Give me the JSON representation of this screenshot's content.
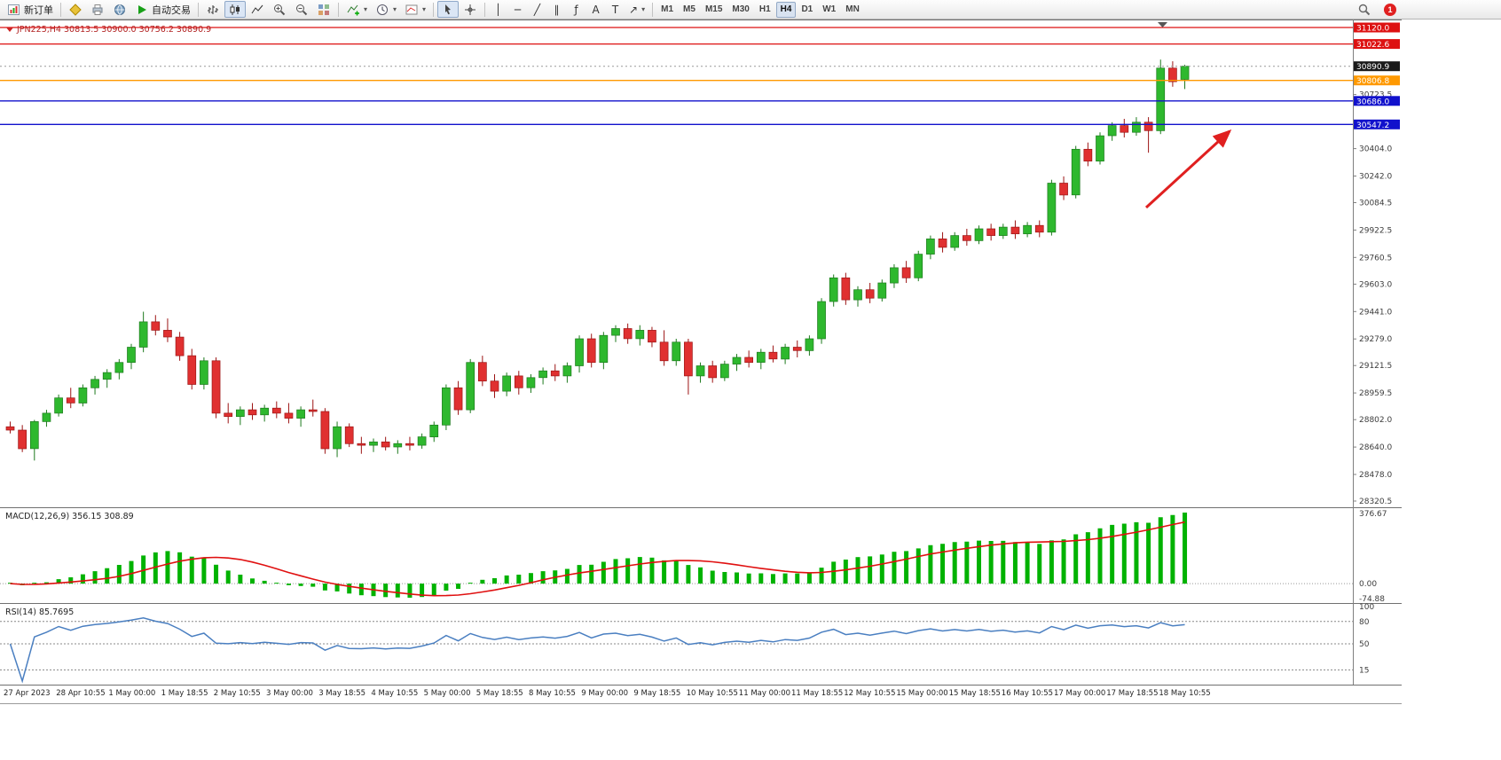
{
  "toolbar": {
    "new_order": "新订单",
    "auto_trading": "自动交易",
    "timeframes": [
      "M1",
      "M5",
      "M15",
      "M30",
      "H1",
      "H4",
      "D1",
      "W1",
      "MN"
    ],
    "active_timeframe": "H4",
    "notification_count": "1",
    "tool_glyphs": {
      "vline": "│",
      "hline": "─",
      "trendline": "╱",
      "channel": "∥",
      "fibonacci": "ƒ",
      "text": "A",
      "label": "T",
      "arrows": "↗",
      "dropdown": "▾"
    }
  },
  "chart": {
    "symbol_header": "JPN225,H4 30813.5 30900.0 30756.2 30890.9",
    "bid": {
      "price": 30890.9,
      "label": "30890.9",
      "badge_color": "#1a1a1a"
    },
    "price_lines": [
      {
        "price": 31120.0,
        "label": "31120.0",
        "color": "#dd1111"
      },
      {
        "price": 31022.6,
        "label": "31022.6",
        "color": "#dd1111"
      },
      {
        "price": 30806.8,
        "label": "30806.8",
        "color": "#ff9900"
      },
      {
        "price": 30686.0,
        "label": "30686.0",
        "color": "#1111cc"
      },
      {
        "price": 30547.2,
        "label": "30547.2",
        "color": "#1111cc"
      }
    ],
    "axis_ticks": [
      "30723.5",
      "30404.0",
      "30242.0",
      "30084.5",
      "29922.5",
      "29760.5",
      "29603.0",
      "29441.0",
      "29279.0",
      "29121.5",
      "28959.5",
      "28802.0",
      "28640.0",
      "28478.0",
      "28320.5"
    ],
    "colors": {
      "up": "#2eb82e",
      "down": "#e03030",
      "up_wick": "#1d7a1d",
      "down_wick": "#9c1414",
      "macd_hist": "#00b200",
      "macd_signal": "#e01010",
      "rsi_line": "#4a7fc1",
      "arrow": "#e02020"
    }
  },
  "indicators": {
    "macd": {
      "name": "MACD(12,26,9)",
      "value_main": "356.15",
      "value_signal": "308.89",
      "scale_top": "376.67",
      "scale_zero": "0.00",
      "scale_bottom": "-74.88",
      "params": {
        "fast": 12,
        "slow": 26,
        "signal": 9
      },
      "range": {
        "max": 376.67,
        "min": -74.88
      }
    },
    "rsi": {
      "name": "RSI(14)",
      "value": "85.7695",
      "period": 14,
      "scale_labels": [
        "100",
        "80",
        "50",
        "15"
      ],
      "levels": [
        80,
        50,
        15
      ]
    }
  },
  "chart_data": {
    "type": "candlestick",
    "symbol": "JPN225",
    "timeframe": "H4",
    "visible_range": {
      "price_min": 28320.5,
      "price_max": 31120.0
    },
    "last_ohlc": {
      "open": 30813.5,
      "high": 30900.0,
      "low": 30756.2,
      "close": 30890.9
    },
    "ohlc": [
      [
        28760,
        28790,
        28720,
        28740
      ],
      [
        28740,
        28770,
        28610,
        28630
      ],
      [
        28630,
        28800,
        28560,
        28790
      ],
      [
        28790,
        28860,
        28760,
        28840
      ],
      [
        28840,
        28950,
        28820,
        28930
      ],
      [
        28930,
        28990,
        28870,
        28900
      ],
      [
        28900,
        29010,
        28880,
        28990
      ],
      [
        28990,
        29060,
        28950,
        29040
      ],
      [
        29040,
        29100,
        28990,
        29080
      ],
      [
        29080,
        29160,
        29040,
        29140
      ],
      [
        29140,
        29250,
        29100,
        29230
      ],
      [
        29230,
        29440,
        29200,
        29380
      ],
      [
        29380,
        29420,
        29300,
        29330
      ],
      [
        29330,
        29400,
        29260,
        29290
      ],
      [
        29290,
        29320,
        29150,
        29180
      ],
      [
        29180,
        29220,
        28980,
        29010
      ],
      [
        29010,
        29170,
        28980,
        29150
      ],
      [
        29150,
        29170,
        28810,
        28840
      ],
      [
        28840,
        28900,
        28780,
        28820
      ],
      [
        28820,
        28880,
        28770,
        28860
      ],
      [
        28860,
        28900,
        28800,
        28830
      ],
      [
        28830,
        28890,
        28790,
        28870
      ],
      [
        28870,
        28910,
        28810,
        28840
      ],
      [
        28840,
        28900,
        28780,
        28810
      ],
      [
        28810,
        28880,
        28760,
        28860
      ],
      [
        28860,
        28920,
        28820,
        28850
      ],
      [
        28850,
        28870,
        28600,
        28630
      ],
      [
        28630,
        28790,
        28580,
        28760
      ],
      [
        28760,
        28780,
        28640,
        28660
      ],
      [
        28660,
        28700,
        28600,
        28650
      ],
      [
        28650,
        28690,
        28610,
        28670
      ],
      [
        28670,
        28700,
        28620,
        28640
      ],
      [
        28640,
        28680,
        28600,
        28660
      ],
      [
        28660,
        28700,
        28620,
        28650
      ],
      [
        28650,
        28720,
        28630,
        28700
      ],
      [
        28700,
        28790,
        28670,
        28770
      ],
      [
        28770,
        29010,
        28740,
        28990
      ],
      [
        28990,
        29030,
        28830,
        28860
      ],
      [
        28860,
        29160,
        28840,
        29140
      ],
      [
        29140,
        29180,
        29000,
        29030
      ],
      [
        29030,
        29070,
        28930,
        28970
      ],
      [
        28970,
        29080,
        28940,
        29060
      ],
      [
        29060,
        29090,
        28950,
        28990
      ],
      [
        28990,
        29070,
        28960,
        29050
      ],
      [
        29050,
        29110,
        29010,
        29090
      ],
      [
        29090,
        29130,
        29030,
        29060
      ],
      [
        29060,
        29140,
        29020,
        29120
      ],
      [
        29120,
        29300,
        29080,
        29280
      ],
      [
        29280,
        29310,
        29110,
        29140
      ],
      [
        29140,
        29320,
        29100,
        29300
      ],
      [
        29300,
        29360,
        29260,
        29340
      ],
      [
        29340,
        29370,
        29250,
        29280
      ],
      [
        29280,
        29360,
        29240,
        29330
      ],
      [
        29330,
        29350,
        29230,
        29260
      ],
      [
        29260,
        29330,
        29120,
        29150
      ],
      [
        29150,
        29280,
        29120,
        29260
      ],
      [
        29260,
        29280,
        28950,
        29060
      ],
      [
        29060,
        29140,
        29020,
        29120
      ],
      [
        29120,
        29150,
        29020,
        29050
      ],
      [
        29050,
        29150,
        29030,
        29130
      ],
      [
        29130,
        29190,
        29090,
        29170
      ],
      [
        29170,
        29210,
        29110,
        29140
      ],
      [
        29140,
        29220,
        29100,
        29200
      ],
      [
        29200,
        29240,
        29140,
        29160
      ],
      [
        29160,
        29250,
        29130,
        29230
      ],
      [
        29230,
        29270,
        29170,
        29210
      ],
      [
        29210,
        29300,
        29180,
        29280
      ],
      [
        29280,
        29520,
        29250,
        29500
      ],
      [
        29500,
        29660,
        29470,
        29640
      ],
      [
        29640,
        29670,
        29480,
        29510
      ],
      [
        29510,
        29590,
        29470,
        29570
      ],
      [
        29570,
        29610,
        29490,
        29520
      ],
      [
        29520,
        29630,
        29500,
        29610
      ],
      [
        29610,
        29720,
        29580,
        29700
      ],
      [
        29700,
        29740,
        29610,
        29640
      ],
      [
        29640,
        29800,
        29620,
        29780
      ],
      [
        29780,
        29890,
        29750,
        29870
      ],
      [
        29870,
        29910,
        29790,
        29820
      ],
      [
        29820,
        29910,
        29800,
        29890
      ],
      [
        29890,
        29930,
        29830,
        29860
      ],
      [
        29860,
        29950,
        29840,
        29930
      ],
      [
        29930,
        29960,
        29860,
        29890
      ],
      [
        29890,
        29960,
        29870,
        29940
      ],
      [
        29940,
        29980,
        29870,
        29900
      ],
      [
        29900,
        29970,
        29880,
        29950
      ],
      [
        29950,
        29980,
        29880,
        29910
      ],
      [
        29910,
        30220,
        29890,
        30200
      ],
      [
        30200,
        30240,
        30100,
        30130
      ],
      [
        30130,
        30420,
        30110,
        30400
      ],
      [
        30400,
        30440,
        30300,
        30330
      ],
      [
        30330,
        30500,
        30310,
        30480
      ],
      [
        30480,
        30560,
        30450,
        30540
      ],
      [
        30540,
        30580,
        30470,
        30500
      ],
      [
        30500,
        30590,
        30480,
        30560
      ],
      [
        30560,
        30590,
        30380,
        30510
      ],
      [
        30510,
        30930,
        30490,
        30880
      ],
      [
        30880,
        30920,
        30770,
        30800
      ],
      [
        30813.5,
        30900,
        30756.2,
        30890.9
      ]
    ],
    "x_labels": [
      "27 Apr 2023",
      "28 Apr 10:55",
      "1 May 00:00",
      "1 May 18:55",
      "2 May 10:55",
      "3 May 00:00",
      "3 May 18:55",
      "4 May 10:55",
      "5 May 00:00",
      "5 May 18:55",
      "8 May 10:55",
      "9 May 00:00",
      "9 May 18:55",
      "10 May 10:55",
      "11 May 00:00",
      "11 May 18:55",
      "12 May 10:55",
      "15 May 00:00",
      "15 May 18:55",
      "16 May 10:55",
      "17 May 00:00",
      "17 May 18:55",
      "18 May 10:55"
    ]
  }
}
